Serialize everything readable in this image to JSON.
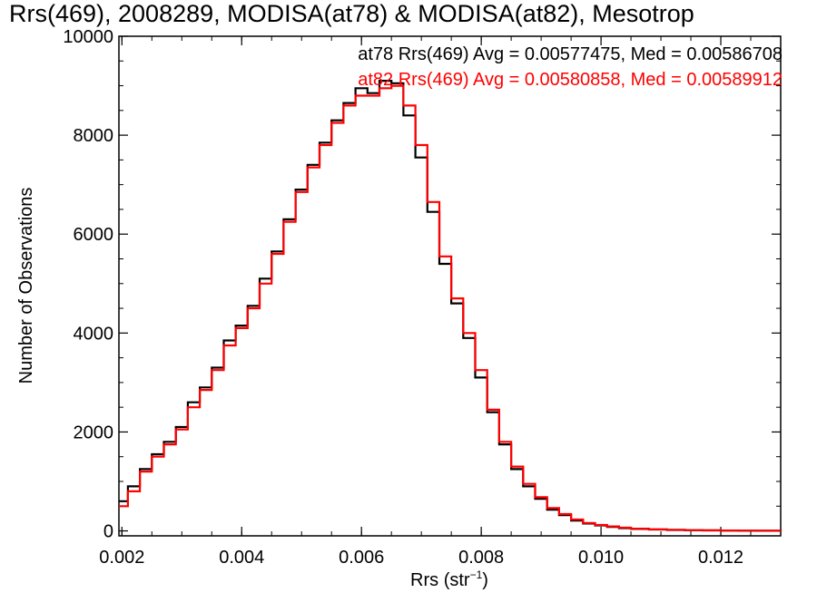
{
  "chart_data": {
    "type": "line",
    "title": "Rrs(469), 2008289, MODISA(at78) & MODISA(at82), Mesotrop",
    "xlabel": "Rrs (str",
    "xlabel_sup": "−1",
    "xlabel_close": ")",
    "ylabel": "Number of Observations",
    "xlim": [
      0.00195,
      0.013
    ],
    "ylim": [
      -100,
      10000
    ],
    "x_ticks": [
      0.002,
      0.004,
      0.006,
      0.008,
      0.01,
      0.012
    ],
    "x_tick_labels": [
      "0.002",
      "0.004",
      "0.006",
      "0.008",
      "0.010",
      "0.012"
    ],
    "y_ticks": [
      0,
      2000,
      4000,
      6000,
      8000,
      10000
    ],
    "y_tick_labels": [
      "0",
      "2000",
      "4000",
      "6000",
      "8000",
      "10000"
    ],
    "grid": false,
    "legend_position": "top-right",
    "series": [
      {
        "name": "at78",
        "color": "#000000",
        "annotation": "at78 Rrs(469) Avg = 0.00577475, Med = 0.00586708",
        "x": [
          0.00195,
          0.0021,
          0.0023,
          0.0025,
          0.0027,
          0.0029,
          0.0031,
          0.0033,
          0.0035,
          0.0037,
          0.0039,
          0.0041,
          0.0043,
          0.0045,
          0.0047,
          0.0049,
          0.0051,
          0.0053,
          0.0055,
          0.0057,
          0.0059,
          0.0061,
          0.0063,
          0.0065,
          0.0067,
          0.0069,
          0.0071,
          0.0073,
          0.0075,
          0.0077,
          0.0079,
          0.0081,
          0.0083,
          0.0085,
          0.0087,
          0.0089,
          0.0091,
          0.0093,
          0.0095,
          0.0097,
          0.0099,
          0.0101,
          0.0103,
          0.0105,
          0.0108,
          0.0111,
          0.0114,
          0.0117,
          0.012,
          0.0123,
          0.0126,
          0.013
        ],
        "y": [
          600,
          900,
          1250,
          1550,
          1800,
          2100,
          2600,
          2900,
          3300,
          3850,
          4150,
          4550,
          5100,
          5650,
          6300,
          6900,
          7400,
          7850,
          8300,
          8650,
          8950,
          8850,
          9100,
          9050,
          8400,
          7550,
          6450,
          5400,
          4600,
          3900,
          3100,
          2400,
          1750,
          1250,
          900,
          650,
          430,
          320,
          210,
          150,
          110,
          80,
          55,
          40,
          28,
          20,
          14,
          10,
          7,
          5,
          3,
          0
        ]
      },
      {
        "name": "at82",
        "color": "#ff0000",
        "annotation": "at82 Rrs(469) Avg = 0.00580858, Med = 0.00589912",
        "x": [
          0.00195,
          0.0021,
          0.0023,
          0.0025,
          0.0027,
          0.0029,
          0.0031,
          0.0033,
          0.0035,
          0.0037,
          0.0039,
          0.0041,
          0.0043,
          0.0045,
          0.0047,
          0.0049,
          0.0051,
          0.0053,
          0.0055,
          0.0057,
          0.0059,
          0.0061,
          0.0063,
          0.0065,
          0.0067,
          0.0069,
          0.0071,
          0.0073,
          0.0075,
          0.0077,
          0.0079,
          0.0081,
          0.0083,
          0.0085,
          0.0087,
          0.0089,
          0.0091,
          0.0093,
          0.0095,
          0.0097,
          0.0099,
          0.0101,
          0.0103,
          0.0105,
          0.0108,
          0.0111,
          0.0114,
          0.0117,
          0.012,
          0.0123,
          0.0126,
          0.013
        ],
        "y": [
          500,
          800,
          1200,
          1500,
          1750,
          2050,
          2500,
          2850,
          3250,
          3750,
          4100,
          4500,
          5000,
          5600,
          6250,
          6850,
          7350,
          7800,
          8250,
          8600,
          8800,
          8800,
          8950,
          9000,
          8600,
          7800,
          6650,
          5550,
          4700,
          4000,
          3250,
          2450,
          1800,
          1300,
          950,
          680,
          460,
          340,
          230,
          160,
          120,
          90,
          65,
          45,
          30,
          22,
          16,
          12,
          9,
          6,
          4,
          0
        ]
      }
    ]
  }
}
